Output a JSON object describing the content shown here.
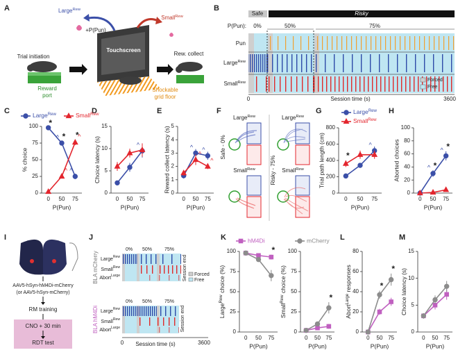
{
  "panel_labels": [
    "A",
    "B",
    "C",
    "D",
    "E",
    "F",
    "G",
    "H",
    "I",
    "J",
    "K",
    "L",
    "M"
  ],
  "diagram_a": {
    "trial_initiation": "Trial initiation",
    "reward_port": [
      "Reward",
      "port"
    ],
    "touchscreen": "Touchscreen",
    "large": [
      "Large",
      "Rew"
    ],
    "pun": "+P(Pun)",
    "small": [
      "Small",
      "Rew"
    ],
    "grid_floor": [
      "Shockable",
      "grid floor"
    ],
    "rew_collect": "Rew. collect"
  },
  "raster_b": {
    "safe": "Safe",
    "risky": "Risky",
    "p_pun": "P(Pun):",
    "blocks": [
      "0%",
      "50%",
      "75%"
    ],
    "rows": [
      "Pun",
      [
        "Large",
        "Rew"
      ],
      [
        "Small",
        "Rew"
      ]
    ],
    "x_start": "0",
    "xlabel": "Session time (s)",
    "x_end": "3600",
    "legend": [
      "Forced",
      "Free"
    ]
  },
  "trajectories_f": {
    "rows": [
      "Safe - 0%",
      "Risky - 75%"
    ],
    "large": [
      "Large",
      "Rew"
    ],
    "small": [
      "Small",
      "Rew"
    ]
  },
  "diagram_i": {
    "virus": "AAV5-hSyn-hM4Di-mCherry",
    "control": "(or AAV5-hSyn-mCherry)",
    "training": "RM training",
    "cno": "CNO + 30 min",
    "test": "RDT test"
  },
  "raster_j": {
    "groups": [
      "BLA mCherry",
      "BLA hM4Di"
    ],
    "blocks": [
      "0%",
      "50%",
      "75%"
    ],
    "rows": [
      [
        "Large",
        "Rew"
      ],
      [
        "Small",
        "Rew"
      ],
      [
        "Abort",
        "Large"
      ]
    ],
    "session_end": "Session end",
    "legend": [
      "Forced",
      "Free"
    ],
    "x_start": "0",
    "xlabel": "Session time (s)",
    "x_end": "3600"
  },
  "chart_data": [
    {
      "type": "line",
      "xlabel": "P(Pun)",
      "ylabel": "% choice",
      "categories": [
        "0",
        "50",
        "75"
      ],
      "ylim": [
        0,
        100
      ],
      "yticks": [
        0,
        25,
        50,
        75,
        100
      ],
      "legend": "top",
      "series": [
        {
          "name": [
            "Large",
            "Rew"
          ],
          "color": "#3b4fa8",
          "marker": "circle",
          "values": [
            98,
            75,
            25
          ],
          "errors": [
            1,
            3,
            4
          ],
          "sig": [
            null,
            "^",
            "^"
          ]
        },
        {
          "name": [
            "Small",
            "Rew"
          ],
          "color": "#e3262e",
          "marker": "triangle",
          "values": [
            2,
            25,
            76
          ],
          "errors": [
            1,
            3,
            4
          ],
          "sig": [
            null,
            "^",
            "^"
          ]
        }
      ],
      "annotations": [
        "*",
        "*",
        "*"
      ]
    },
    {
      "type": "line",
      "xlabel": "P(Pun)",
      "ylabel": "Choice latency (s)",
      "categories": [
        "0",
        "50",
        "75"
      ],
      "ylim": [
        0,
        15
      ],
      "yticks": [
        0,
        5,
        10,
        15
      ],
      "series": [
        {
          "name": [
            "Large",
            "Rew"
          ],
          "color": "#3b4fa8",
          "marker": "circle",
          "values": [
            2.3,
            5.8,
            9.5
          ],
          "errors": [
            0.5,
            1,
            1.5
          ],
          "sig": [
            null,
            null,
            "^"
          ]
        },
        {
          "name": [
            "Small",
            "Rew"
          ],
          "color": "#e3262e",
          "marker": "triangle",
          "values": [
            6,
            9,
            9.7
          ],
          "errors": [
            1,
            1,
            1.5
          ],
          "sig": [
            null,
            null,
            null
          ]
        }
      ]
    },
    {
      "type": "line",
      "xlabel": "P(Pun)",
      "ylabel": "Reward collect latency (s)",
      "categories": [
        "0",
        "50",
        "75"
      ],
      "ylim": [
        0,
        5
      ],
      "yticks": [
        0,
        1,
        2,
        3,
        4,
        5
      ],
      "series": [
        {
          "name": [
            "Large",
            "Rew"
          ],
          "color": "#3b4fa8",
          "marker": "circle",
          "values": [
            1.3,
            3.0,
            2.8
          ],
          "errors": [
            0.2,
            0.3,
            0.3
          ],
          "sig": [
            null,
            "^",
            "^"
          ]
        },
        {
          "name": [
            "Small",
            "Rew"
          ],
          "color": "#e3262e",
          "marker": "triangle",
          "values": [
            1.5,
            2.5,
            2.0
          ],
          "errors": [
            0.2,
            0.4,
            0.2
          ],
          "sig": [
            null,
            "^",
            "^"
          ]
        }
      ]
    },
    {
      "type": "line",
      "xlabel": "P(Pun)",
      "ylabel": "Trial path length (cm)",
      "categories": [
        "0",
        "50",
        "75"
      ],
      "ylim": [
        0,
        800
      ],
      "yticks": [
        0,
        200,
        400,
        600,
        800
      ],
      "legend": "top-left",
      "series": [
        {
          "name": [
            "Large",
            "Rew"
          ],
          "color": "#3b4fa8",
          "marker": "circle",
          "values": [
            210,
            340,
            520
          ],
          "errors": [
            20,
            30,
            50
          ],
          "sig": [
            null,
            null,
            "^"
          ]
        },
        {
          "name": [
            "Small",
            "Rew"
          ],
          "color": "#e3262e",
          "marker": "triangle",
          "values": [
            360,
            470,
            470
          ],
          "errors": [
            40,
            50,
            50
          ],
          "sig": [
            null,
            null,
            null
          ]
        }
      ],
      "annotations": [
        "*",
        null,
        null
      ]
    },
    {
      "type": "line",
      "xlabel": "P(Pun)",
      "ylabel": "Aborted choices",
      "categories": [
        "0",
        "50",
        "75"
      ],
      "ylim": [
        0,
        100
      ],
      "yticks": [
        0,
        20,
        40,
        60,
        80,
        100
      ],
      "series": [
        {
          "name": [
            "Large",
            "Rew"
          ],
          "color": "#3b4fa8",
          "marker": "circle",
          "values": [
            0,
            30,
            57
          ],
          "errors": [
            0,
            5,
            7
          ],
          "sig": [
            null,
            "^",
            "^"
          ]
        },
        {
          "name": [
            "Small",
            "Rew"
          ],
          "color": "#e3262e",
          "marker": "triangle",
          "values": [
            0,
            1,
            5
          ],
          "errors": [
            0,
            1,
            2
          ],
          "sig": [
            null,
            null,
            null
          ]
        }
      ],
      "annotations": [
        null,
        "*",
        "*"
      ]
    },
    {
      "type": "line",
      "xlabel": "P(Pun)",
      "ylabel": [
        "Large",
        "Rew",
        " choice (%)"
      ],
      "categories": [
        "0",
        "50",
        "75"
      ],
      "ylim": [
        0,
        100
      ],
      "yticks": [
        0,
        25,
        50,
        75,
        100
      ],
      "legend": "top",
      "series": [
        {
          "name": "hM4Di",
          "color": "#c060c0",
          "marker": "square",
          "values": [
            98,
            95,
            93
          ],
          "errors": [
            1,
            2,
            3
          ]
        },
        {
          "name": "mCherry",
          "color": "#8c8c8c",
          "marker": "circle",
          "values": [
            98,
            90,
            70
          ],
          "errors": [
            1,
            3,
            7
          ]
        }
      ],
      "annotations": [
        null,
        null,
        "*"
      ]
    },
    {
      "type": "line",
      "xlabel": "P(Pun)",
      "ylabel": [
        "Small",
        "Rew",
        " choice (%)"
      ],
      "categories": [
        "0",
        "50",
        "75"
      ],
      "ylim": [
        0,
        100
      ],
      "yticks": [
        0,
        25,
        50,
        75,
        100
      ],
      "series": [
        {
          "name": "hM4Di",
          "color": "#c060c0",
          "marker": "square",
          "values": [
            2,
            5,
            7
          ],
          "errors": [
            1,
            2,
            3
          ]
        },
        {
          "name": "mCherry",
          "color": "#8c8c8c",
          "marker": "circle",
          "values": [
            2,
            10,
            30
          ],
          "errors": [
            1,
            3,
            7
          ]
        }
      ],
      "annotations": [
        null,
        null,
        "*"
      ]
    },
    {
      "type": "line",
      "xlabel": "P(Pun)",
      "ylabel": [
        "Abort",
        "Large",
        " responses"
      ],
      "categories": [
        "0",
        "50",
        "75"
      ],
      "ylim": [
        0,
        80
      ],
      "yticks": [
        0,
        20,
        40,
        60,
        80
      ],
      "series": [
        {
          "name": "hM4Di",
          "color": "#c060c0",
          "marker": "square",
          "values": [
            0,
            20,
            30
          ],
          "errors": [
            0,
            3,
            4
          ]
        },
        {
          "name": "mCherry",
          "color": "#8c8c8c",
          "marker": "circle",
          "values": [
            0,
            37,
            52
          ],
          "errors": [
            0,
            4,
            6
          ]
        }
      ],
      "annotations": [
        null,
        "*",
        "*"
      ]
    },
    {
      "type": "line",
      "xlabel": "P(Pun)",
      "ylabel": "Choice latency (s)",
      "categories": [
        "0",
        "50",
        "75"
      ],
      "ylim": [
        0,
        15
      ],
      "yticks": [
        0,
        5,
        10,
        15
      ],
      "series": [
        {
          "name": "hM4Di",
          "color": "#c060c0",
          "marker": "square",
          "values": [
            3,
            5,
            7
          ],
          "errors": [
            0.5,
            0.8,
            1
          ]
        },
        {
          "name": "mCherry",
          "color": "#8c8c8c",
          "marker": "circle",
          "values": [
            3,
            6,
            8.5
          ],
          "errors": [
            0.5,
            0.8,
            1
          ]
        }
      ]
    }
  ]
}
